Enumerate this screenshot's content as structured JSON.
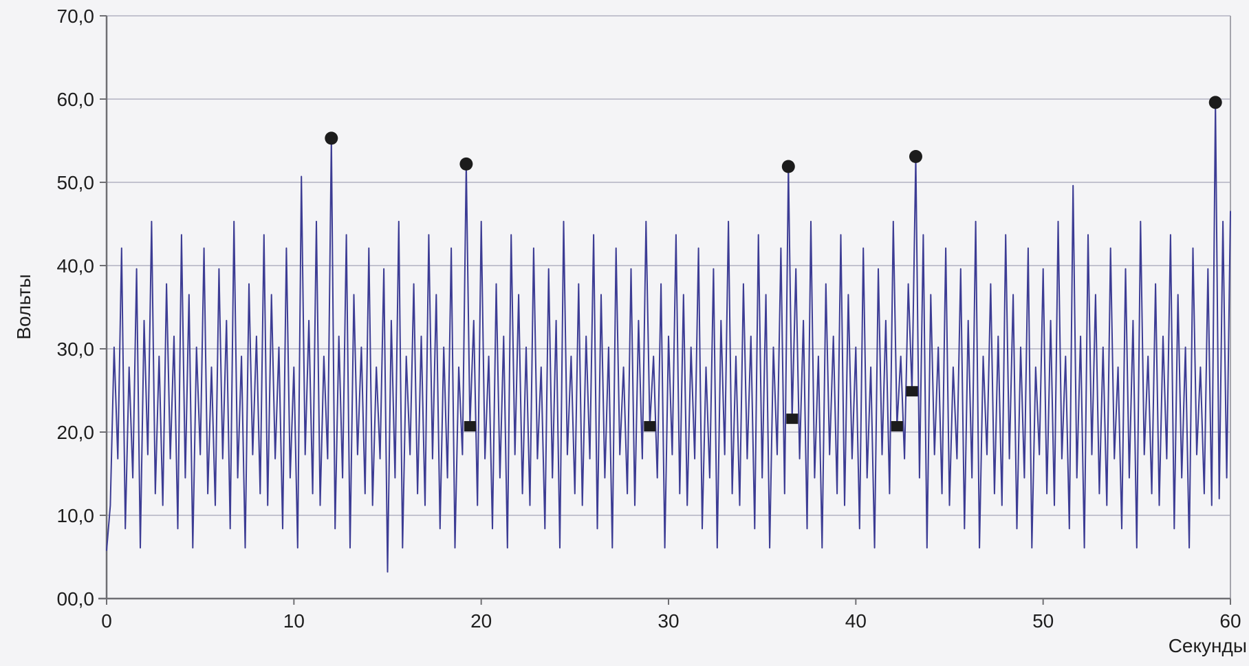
{
  "chart_data": {
    "type": "line",
    "title": "",
    "xlabel": "Секунды",
    "ylabel": "Вольты",
    "xlim": [
      0,
      60
    ],
    "ylim": [
      0,
      70
    ],
    "grid": "horizontal",
    "legend": "none",
    "x_ticks": [
      {
        "value": 0,
        "label": "0"
      },
      {
        "value": 10,
        "label": "10"
      },
      {
        "value": 20,
        "label": "20"
      },
      {
        "value": 30,
        "label": "30"
      },
      {
        "value": 40,
        "label": "40"
      },
      {
        "value": 50,
        "label": "50"
      },
      {
        "value": 60,
        "label": "60"
      }
    ],
    "y_ticks": [
      {
        "value": 70,
        "label": "70,0"
      },
      {
        "value": 60,
        "label": "60,0"
      },
      {
        "value": 50,
        "label": "50,0"
      },
      {
        "value": 40,
        "label": "40,0"
      },
      {
        "value": 30,
        "label": "30,0"
      },
      {
        "value": 20,
        "label": "20,0"
      },
      {
        "value": 10,
        "label": "10,0"
      },
      {
        "value": 0,
        "label": "00,0"
      }
    ],
    "series": [
      {
        "name": "voltage-signal",
        "type": "line",
        "color": "#3c3c94",
        "t_start": 0,
        "t_step": 0.2,
        "values": [
          5.8,
          11.2,
          30.2,
          16.8,
          42.1,
          8.4,
          27.8,
          14.5,
          39.6,
          6.1,
          33.4,
          17.3,
          45.3,
          12.6,
          29.1,
          11.2,
          37.8,
          16.8,
          31.5,
          8.4,
          43.7,
          14.5,
          36.5,
          6.1,
          30.2,
          17.3,
          42.1,
          12.6,
          27.8,
          11.2,
          39.6,
          16.8,
          33.4,
          8.4,
          45.3,
          14.5,
          29.1,
          6.1,
          37.8,
          17.3,
          31.5,
          12.6,
          43.7,
          11.2,
          36.5,
          16.8,
          30.2,
          8.4,
          42.1,
          14.5,
          27.8,
          6.1,
          50.7,
          17.3,
          33.4,
          12.6,
          45.3,
          11.2,
          29.1,
          16.8,
          55.3,
          8.4,
          31.5,
          14.5,
          43.7,
          6.1,
          36.5,
          17.3,
          30.2,
          12.6,
          42.1,
          11.2,
          27.8,
          16.8,
          39.6,
          3.2,
          33.4,
          14.5,
          45.3,
          6.1,
          29.1,
          17.3,
          37.8,
          12.6,
          31.5,
          11.2,
          43.7,
          16.8,
          36.5,
          8.4,
          30.2,
          14.5,
          42.1,
          6.1,
          27.8,
          17.3,
          52.2,
          20.7,
          33.4,
          11.2,
          45.3,
          16.8,
          29.1,
          8.4,
          37.8,
          14.5,
          31.5,
          6.1,
          43.7,
          17.3,
          36.5,
          12.6,
          30.2,
          11.2,
          42.1,
          16.8,
          27.8,
          8.4,
          39.6,
          14.5,
          33.4,
          6.1,
          45.3,
          17.3,
          29.1,
          12.6,
          37.8,
          11.2,
          31.5,
          16.8,
          43.7,
          8.4,
          36.5,
          14.5,
          30.2,
          6.1,
          42.1,
          17.3,
          27.8,
          12.6,
          39.6,
          11.2,
          33.4,
          16.8,
          45.3,
          20.7,
          29.1,
          14.5,
          37.8,
          6.1,
          31.5,
          17.3,
          43.7,
          12.6,
          36.5,
          11.2,
          30.2,
          16.8,
          42.1,
          8.4,
          27.8,
          14.5,
          39.6,
          6.1,
          33.4,
          17.3,
          45.3,
          12.6,
          29.1,
          11.2,
          37.8,
          16.8,
          31.5,
          8.4,
          43.7,
          14.5,
          36.5,
          6.1,
          30.2,
          17.3,
          42.1,
          12.6,
          51.9,
          21.6,
          39.6,
          16.8,
          33.4,
          8.4,
          45.3,
          14.5,
          29.1,
          6.1,
          37.8,
          17.3,
          31.5,
          12.6,
          43.7,
          11.2,
          36.5,
          16.8,
          30.2,
          8.4,
          42.1,
          14.5,
          27.8,
          6.1,
          39.6,
          17.3,
          33.4,
          12.6,
          45.3,
          20.7,
          29.1,
          16.8,
          37.8,
          24.9,
          53.1,
          14.5,
          43.7,
          6.1,
          36.5,
          17.3,
          30.2,
          12.6,
          42.1,
          11.2,
          27.8,
          16.8,
          39.6,
          8.4,
          33.4,
          14.5,
          45.3,
          6.1,
          29.1,
          17.3,
          37.8,
          12.6,
          31.5,
          11.2,
          43.7,
          16.8,
          36.5,
          8.4,
          30.2,
          14.5,
          42.1,
          6.1,
          27.8,
          17.3,
          39.6,
          12.6,
          33.4,
          11.2,
          45.3,
          16.8,
          29.1,
          8.4,
          49.6,
          14.5,
          31.5,
          6.1,
          43.7,
          17.3,
          36.5,
          12.6,
          30.2,
          11.2,
          42.1,
          16.8,
          27.8,
          8.4,
          39.6,
          14.5,
          33.4,
          6.1,
          45.3,
          17.3,
          29.1,
          12.6,
          37.8,
          11.2,
          31.5,
          16.8,
          43.7,
          8.4,
          36.5,
          14.5,
          30.2,
          6.1,
          42.1,
          17.3,
          27.8,
          12.6,
          39.6,
          11.2,
          59.6,
          12.0,
          45.3,
          14.5,
          46.5
        ]
      },
      {
        "name": "peak-markers",
        "type": "scatter",
        "marker": "circle",
        "color": "#1c1c1c",
        "points": [
          {
            "t": 12.0,
            "v": 55.3
          },
          {
            "t": 19.2,
            "v": 52.2
          },
          {
            "t": 36.4,
            "v": 51.9
          },
          {
            "t": 43.2,
            "v": 53.1
          },
          {
            "t": 59.2,
            "v": 59.6
          }
        ]
      },
      {
        "name": "event-markers",
        "type": "scatter",
        "marker": "square",
        "color": "#1c1c1c",
        "points": [
          {
            "t": 19.4,
            "v": 20.7
          },
          {
            "t": 29.0,
            "v": 20.7
          },
          {
            "t": 36.6,
            "v": 21.6
          },
          {
            "t": 42.2,
            "v": 20.7
          },
          {
            "t": 43.0,
            "v": 24.9
          }
        ]
      }
    ]
  },
  "colors": {
    "background": "#f4f4f6",
    "signal_line": "#3c3c94",
    "marker_fill": "#1c1c1c",
    "gridline": "#c2c2ce",
    "axis_line": "#6f6f73",
    "border_line": "#a4a4ac",
    "text": "#1e1e1e"
  }
}
